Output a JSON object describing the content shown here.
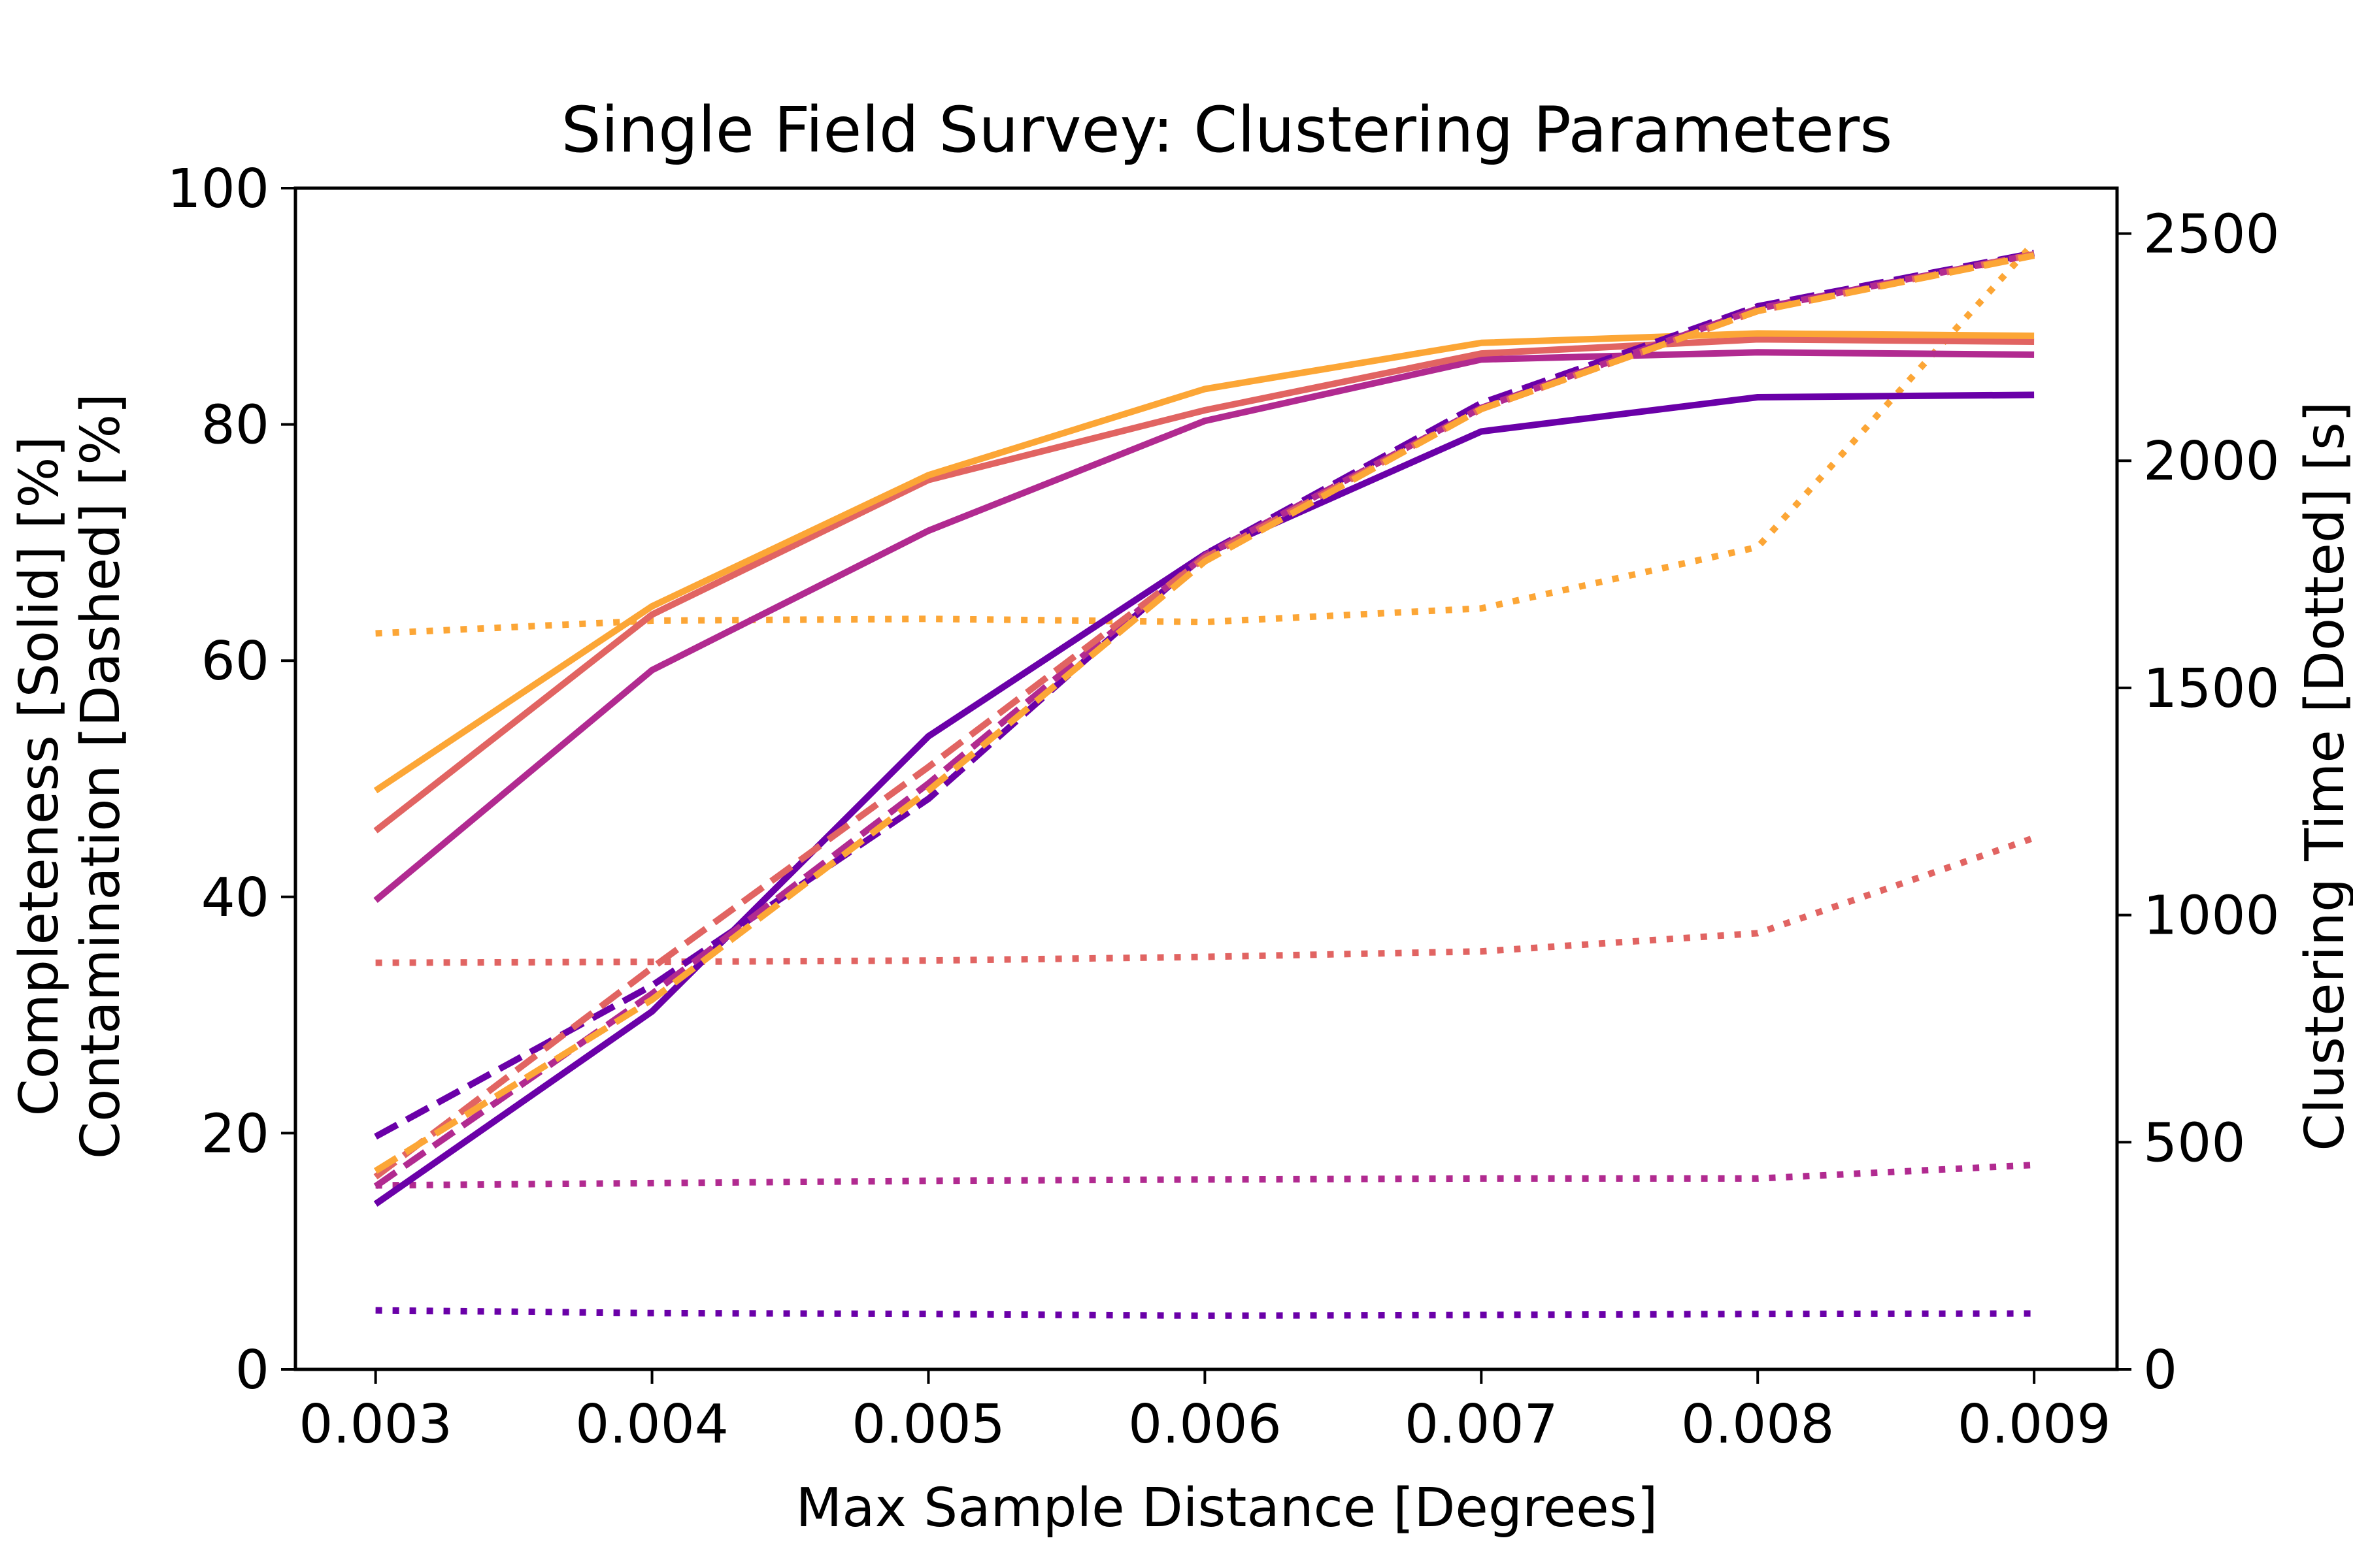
{
  "chart_data": {
    "type": "line",
    "title": "Single Field Survey: Clustering Parameters",
    "xlabel": "Max Sample Distance [Degrees]",
    "ylabel_left_line1": "Contamination [Dashed] [%]",
    "ylabel_left_line2": "Completeness [Solid] [%]",
    "ylabel_right": "Clustering Time [Dotted] [s]",
    "x": [
      0.003,
      0.004,
      0.005,
      0.006,
      0.007,
      0.008,
      0.009
    ],
    "x_tick_labels": [
      "0.003",
      "0.004",
      "0.005",
      "0.006",
      "0.007",
      "0.008",
      "0.009"
    ],
    "xlim": [
      0.00271,
      0.0093
    ],
    "ylim_left": [
      0,
      100
    ],
    "y_left_ticks": [
      "0",
      "20",
      "40",
      "60",
      "80",
      "100"
    ],
    "ylim_right": [
      0,
      2600
    ],
    "y_right_ticks": [
      "0",
      "500",
      "1000",
      "1500",
      "2000",
      "2500"
    ],
    "grid": false,
    "legend": "none",
    "series": [
      {
        "color": "#6a00a8",
        "completeness": [
          14.0,
          30.3,
          53.6,
          69.0,
          79.4,
          82.3,
          82.5
        ],
        "contamination": [
          19.7,
          32.5,
          48.3,
          69.0,
          81.8,
          90.0,
          94.5
        ],
        "clustering_time": [
          130,
          124,
          122,
          118,
          120,
          122,
          123
        ]
      },
      {
        "color": "#b12a90",
        "completeness": [
          39.7,
          59.2,
          71.0,
          80.3,
          85.5,
          86.1,
          85.9
        ],
        "contamination": [
          15.5,
          31.8,
          49.6,
          68.9,
          81.4,
          89.8,
          94.4
        ],
        "clustering_time": [
          405,
          410,
          415,
          418,
          420,
          420,
          450
        ]
      },
      {
        "color": "#e16462",
        "completeness": [
          45.6,
          63.9,
          75.3,
          81.2,
          86.0,
          87.2,
          87.0
        ],
        "contamination": [
          16.3,
          34.0,
          51.0,
          68.7,
          81.3,
          89.6,
          94.4
        ],
        "clustering_time": [
          895,
          897,
          900,
          908,
          920,
          960,
          1170
        ]
      },
      {
        "color": "#fca636",
        "completeness": [
          49.0,
          64.6,
          75.7,
          83.0,
          86.9,
          87.7,
          87.5
        ],
        "contamination": [
          16.8,
          31.3,
          49.0,
          68.4,
          81.3,
          89.6,
          94.3
        ],
        "clustering_time": [
          1620,
          1648,
          1652,
          1645,
          1675,
          1810,
          2480
        ]
      }
    ]
  }
}
